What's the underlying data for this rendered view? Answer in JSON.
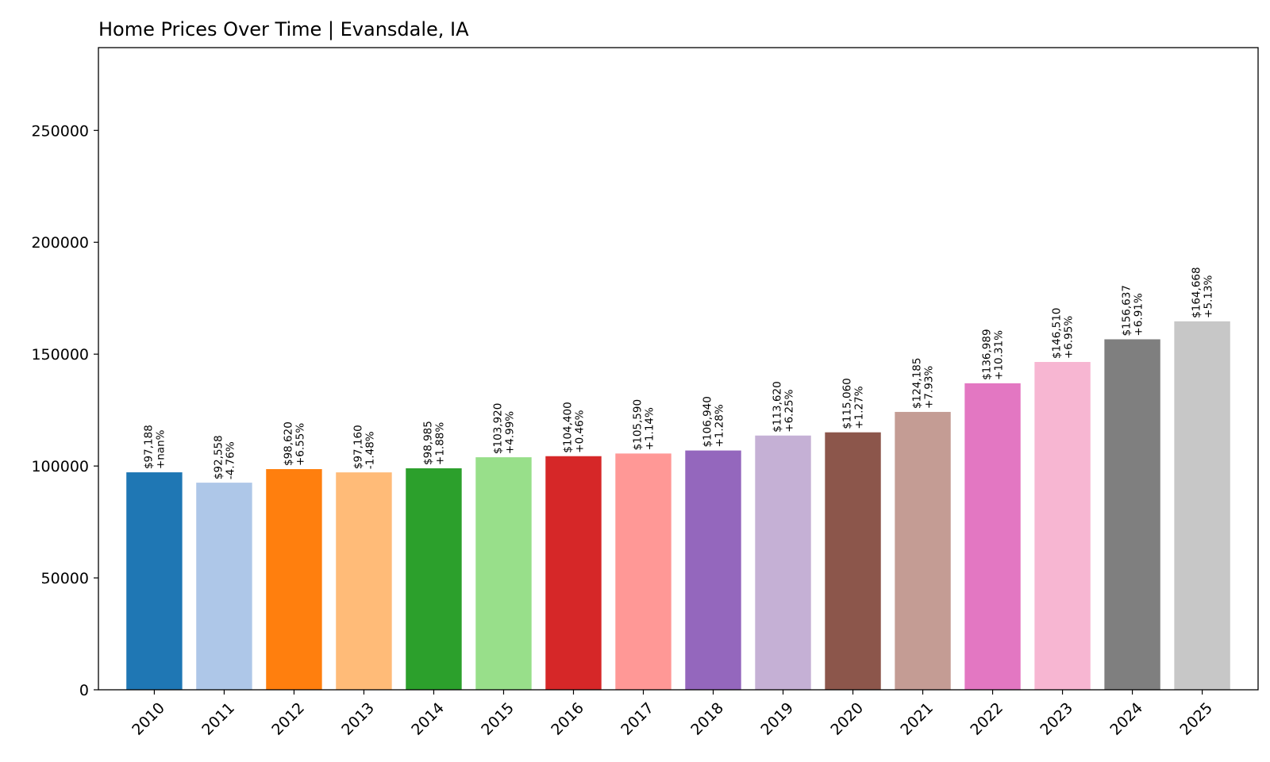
{
  "chart_data": {
    "type": "bar",
    "title": "Home Prices Over Time | Evansdale, IA",
    "xlabel": "",
    "ylabel": "",
    "ylim": [
      0,
      287000
    ],
    "yticks": [
      0,
      50000,
      100000,
      150000,
      200000,
      250000
    ],
    "ytick_labels": [
      "0",
      "50000",
      "100000",
      "150000",
      "200000",
      "250000"
    ],
    "grid": false,
    "categories": [
      "2010",
      "2011",
      "2012",
      "2013",
      "2014",
      "2015",
      "2016",
      "2017",
      "2018",
      "2019",
      "2020",
      "2021",
      "2022",
      "2023",
      "2024",
      "2025"
    ],
    "values": [
      97188,
      92558,
      98620,
      97160,
      98985,
      103920,
      104400,
      105590,
      106940,
      113620,
      115060,
      124185,
      136989,
      146510,
      156637,
      164668
    ],
    "value_labels": [
      "$97,188",
      "$92,558",
      "$98,620",
      "$97,160",
      "$98,985",
      "$103,920",
      "$104,400",
      "$105,590",
      "$106,940",
      "$113,620",
      "$115,060",
      "$124,185",
      "$136,989",
      "$146,510",
      "$156,637",
      "$164,668"
    ],
    "change_labels": [
      "+nan%",
      "-4.76%",
      "+6.55%",
      "-1.48%",
      "+1.88%",
      "+4.99%",
      "+0.46%",
      "+1.14%",
      "+1.28%",
      "+6.25%",
      "+1.27%",
      "+7.93%",
      "+10.31%",
      "+6.95%",
      "+6.91%",
      "+5.13%"
    ],
    "colors": [
      "#1f77b4",
      "#aec7e8",
      "#ff7f0e",
      "#ffbb78",
      "#2ca02c",
      "#98df8a",
      "#d62728",
      "#ff9896",
      "#9467bd",
      "#c5b0d5",
      "#8c564b",
      "#c49c94",
      "#e377c2",
      "#f7b6d2",
      "#7f7f7f",
      "#c7c7c7"
    ]
  }
}
